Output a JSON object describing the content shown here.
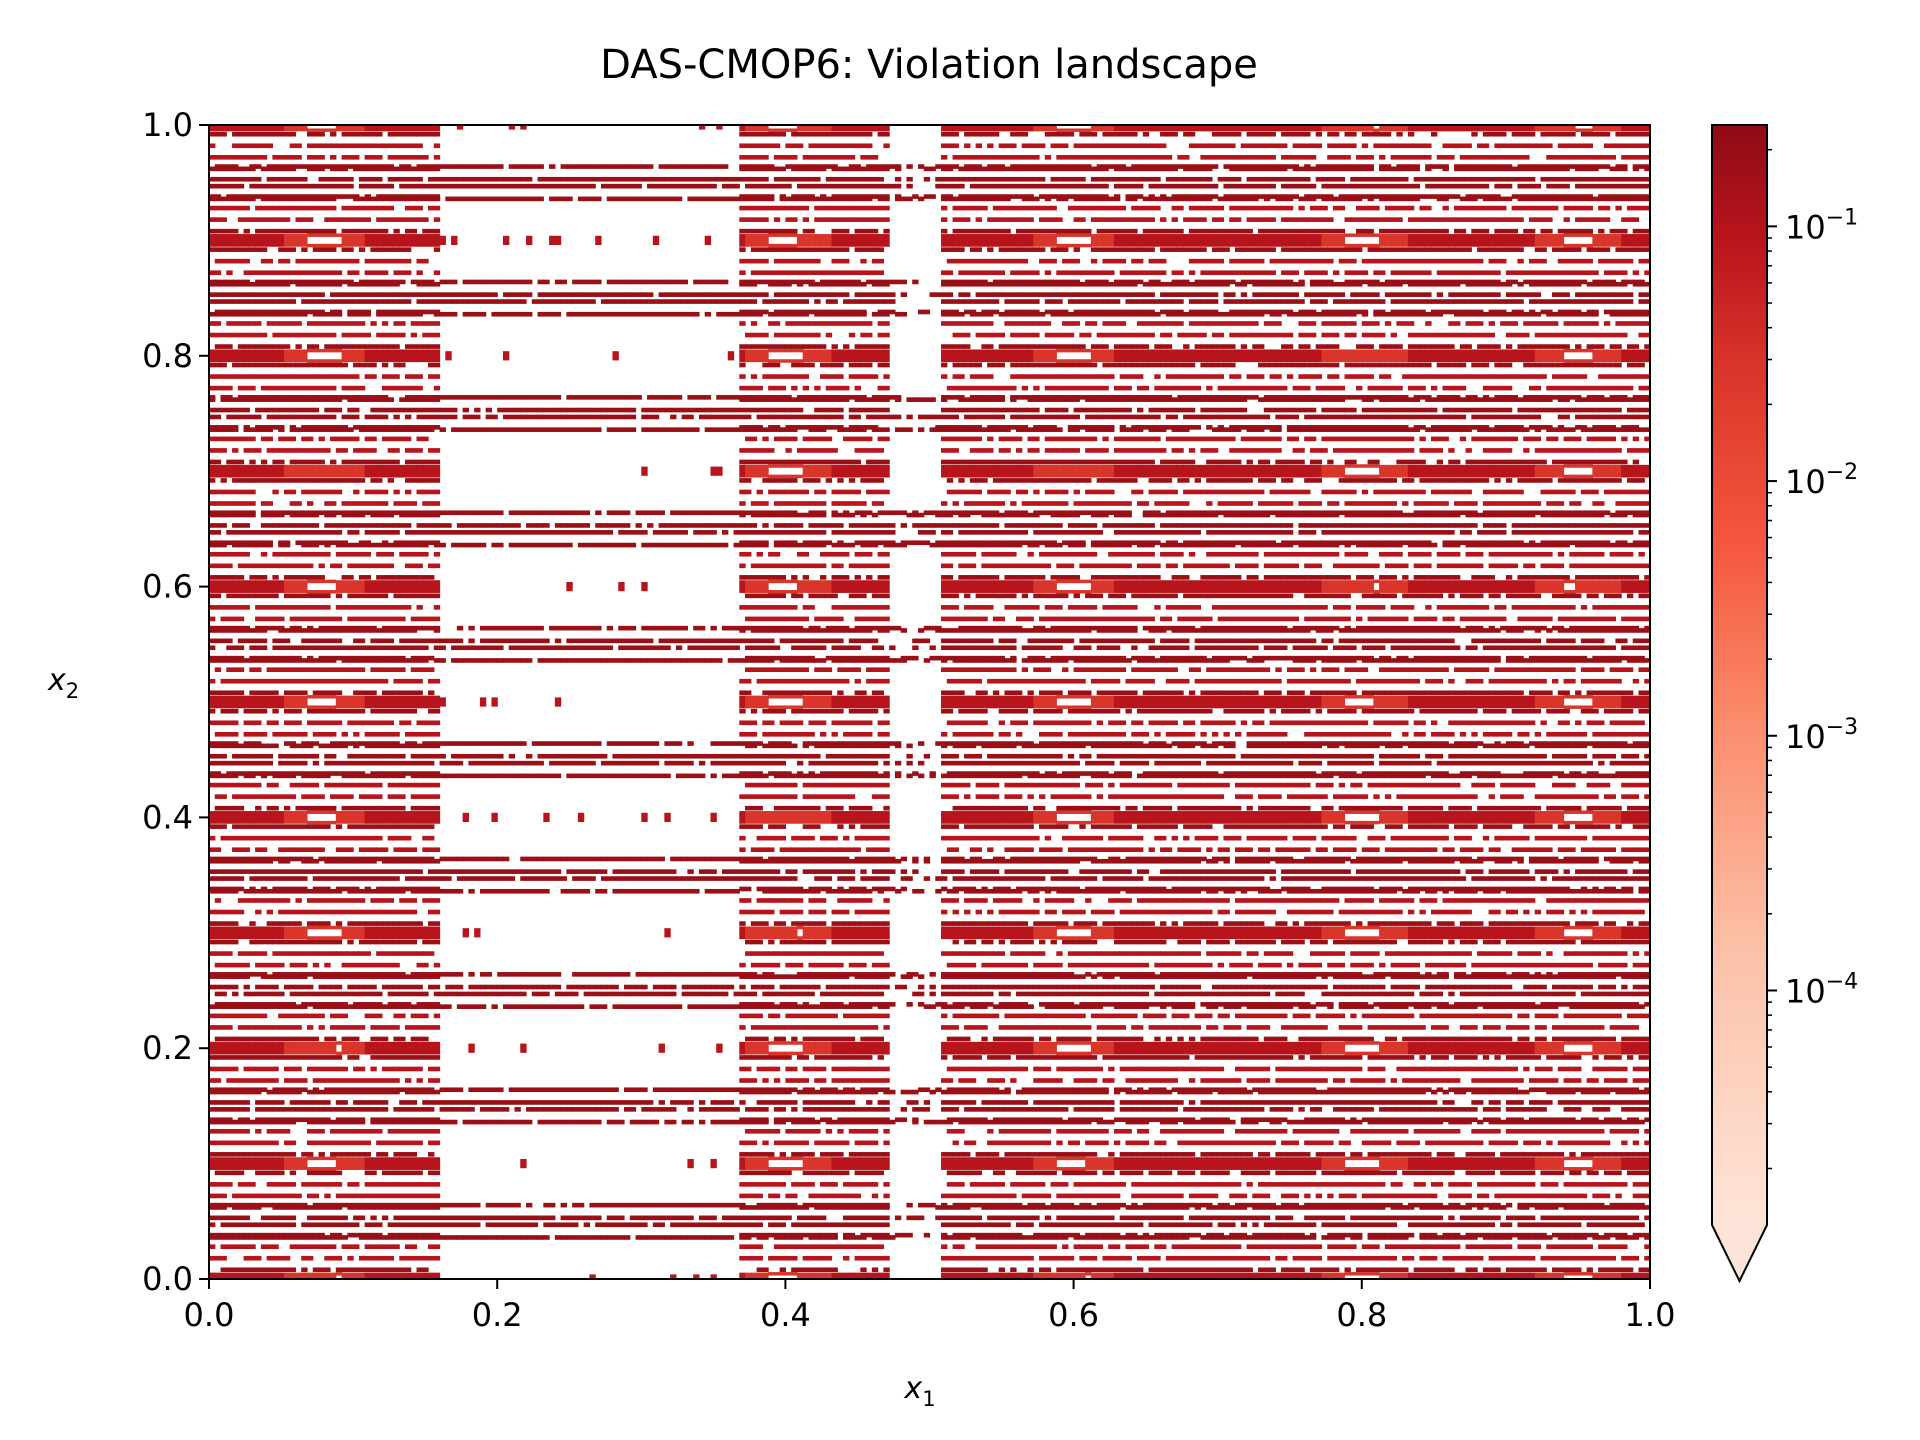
{
  "chart_data": {
    "type": "heatmap",
    "title": "DAS-CMOP6: Violation landscape",
    "xlabel": "x",
    "xlabel_sub": "1",
    "ylabel": "x",
    "ylabel_sub": "2",
    "xlim": [
      0.0,
      1.0
    ],
    "ylim": [
      0.0,
      1.0
    ],
    "x_ticks": [
      "0.0",
      "0.2",
      "0.4",
      "0.6",
      "0.8",
      "1.0"
    ],
    "y_ticks": [
      "0.0",
      "0.2",
      "0.4",
      "0.6",
      "0.8",
      "1.0"
    ],
    "grid": false,
    "colormap": "Reds",
    "color_scale": "log",
    "colorbar": {
      "range": [
        1.2e-05,
        0.25
      ],
      "extend": "min",
      "ticks": [
        {
          "value": 0.1,
          "base": "10",
          "exp": "−1"
        },
        {
          "value": 0.01,
          "base": "10",
          "exp": "−2"
        },
        {
          "value": 0.001,
          "base": "10",
          "exp": "−3"
        },
        {
          "value": 0.0001,
          "base": "10",
          "exp": "−4"
        }
      ]
    },
    "band_centers_x2": [
      0.0,
      0.1,
      0.2,
      0.3,
      0.4,
      0.5,
      0.6,
      0.7,
      0.8,
      0.9,
      1.0
    ],
    "column_centers_x1": [
      0.08,
      0.4,
      0.6,
      0.8,
      0.95
    ],
    "weak_region_x1": [
      0.16,
      0.37
    ],
    "gap_region_x1": [
      0.47,
      0.51
    ]
  },
  "colors": {
    "dark": "#9b0f17",
    "mid": "#b8141c",
    "bright": "#d9352a",
    "light": "#fb9b7e",
    "min": "#fee4d8",
    "background": "#ffffff",
    "axis": "#000000"
  }
}
